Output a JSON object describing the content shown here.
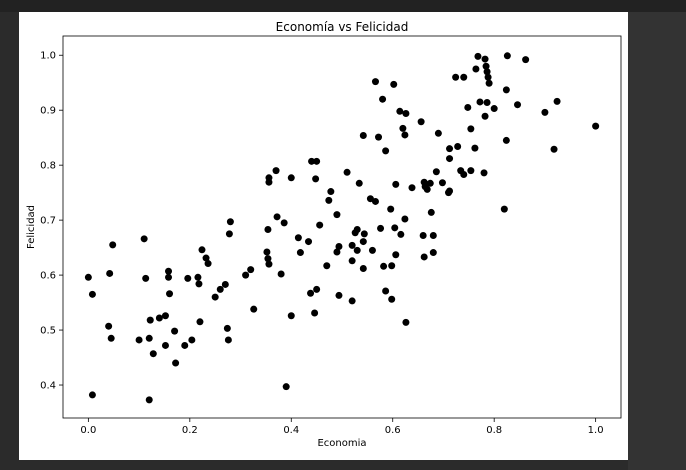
{
  "chart_data": {
    "type": "scatter",
    "title": "Economía vs Felicidad",
    "xlabel": "Economia",
    "ylabel": "Felicidad",
    "xlim": [
      -0.05,
      1.05
    ],
    "ylim": [
      0.34,
      1.035
    ],
    "xticks": [
      0.0,
      0.2,
      0.4,
      0.6,
      0.8,
      1.0
    ],
    "yticks": [
      0.4,
      0.5,
      0.6,
      0.7,
      0.8,
      0.9,
      1.0
    ],
    "grid": false,
    "marker_color": "#000000",
    "points": [
      [
        0.0,
        0.596
      ],
      [
        0.008,
        0.565
      ],
      [
        0.008,
        0.382
      ],
      [
        0.04,
        0.507
      ],
      [
        0.042,
        0.603
      ],
      [
        0.048,
        0.655
      ],
      [
        0.045,
        0.485
      ],
      [
        0.1,
        0.482
      ],
      [
        0.11,
        0.666
      ],
      [
        0.113,
        0.594
      ],
      [
        0.12,
        0.373
      ],
      [
        0.12,
        0.485
      ],
      [
        0.122,
        0.518
      ],
      [
        0.128,
        0.457
      ],
      [
        0.14,
        0.522
      ],
      [
        0.152,
        0.472
      ],
      [
        0.152,
        0.526
      ],
      [
        0.158,
        0.607
      ],
      [
        0.16,
        0.566
      ],
      [
        0.158,
        0.596
      ],
      [
        0.17,
        0.498
      ],
      [
        0.172,
        0.44
      ],
      [
        0.19,
        0.472
      ],
      [
        0.196,
        0.594
      ],
      [
        0.204,
        0.482
      ],
      [
        0.216,
        0.596
      ],
      [
        0.218,
        0.584
      ],
      [
        0.22,
        0.515
      ],
      [
        0.224,
        0.646
      ],
      [
        0.232,
        0.631
      ],
      [
        0.236,
        0.621
      ],
      [
        0.25,
        0.56
      ],
      [
        0.26,
        0.574
      ],
      [
        0.27,
        0.583
      ],
      [
        0.274,
        0.503
      ],
      [
        0.276,
        0.482
      ],
      [
        0.278,
        0.675
      ],
      [
        0.28,
        0.697
      ],
      [
        0.31,
        0.6
      ],
      [
        0.32,
        0.61
      ],
      [
        0.326,
        0.538
      ],
      [
        0.352,
        0.642
      ],
      [
        0.354,
        0.683
      ],
      [
        0.354,
        0.63
      ],
      [
        0.356,
        0.62
      ],
      [
        0.356,
        0.769
      ],
      [
        0.356,
        0.777
      ],
      [
        0.37,
        0.79
      ],
      [
        0.372,
        0.706
      ],
      [
        0.38,
        0.602
      ],
      [
        0.386,
        0.695
      ],
      [
        0.39,
        0.397
      ],
      [
        0.4,
        0.526
      ],
      [
        0.4,
        0.777
      ],
      [
        0.414,
        0.668
      ],
      [
        0.418,
        0.641
      ],
      [
        0.434,
        0.661
      ],
      [
        0.438,
        0.567
      ],
      [
        0.44,
        0.807
      ],
      [
        0.446,
        0.531
      ],
      [
        0.448,
        0.775
      ],
      [
        0.45,
        0.574
      ],
      [
        0.45,
        0.807
      ],
      [
        0.456,
        0.691
      ],
      [
        0.47,
        0.617
      ],
      [
        0.474,
        0.736
      ],
      [
        0.478,
        0.752
      ],
      [
        0.49,
        0.71
      ],
      [
        0.49,
        0.642
      ],
      [
        0.494,
        0.652
      ],
      [
        0.494,
        0.563
      ],
      [
        0.51,
        0.787
      ],
      [
        0.52,
        0.553
      ],
      [
        0.52,
        0.626
      ],
      [
        0.52,
        0.654
      ],
      [
        0.526,
        0.677
      ],
      [
        0.53,
        0.683
      ],
      [
        0.53,
        0.645
      ],
      [
        0.534,
        0.767
      ],
      [
        0.542,
        0.854
      ],
      [
        0.542,
        0.612
      ],
      [
        0.542,
        0.661
      ],
      [
        0.544,
        0.675
      ],
      [
        0.556,
        0.739
      ],
      [
        0.56,
        0.645
      ],
      [
        0.566,
        0.952
      ],
      [
        0.566,
        0.734
      ],
      [
        0.572,
        0.851
      ],
      [
        0.576,
        0.685
      ],
      [
        0.58,
        0.92
      ],
      [
        0.582,
        0.616
      ],
      [
        0.586,
        0.826
      ],
      [
        0.586,
        0.571
      ],
      [
        0.596,
        0.72
      ],
      [
        0.598,
        0.617
      ],
      [
        0.598,
        0.556
      ],
      [
        0.602,
        0.947
      ],
      [
        0.604,
        0.686
      ],
      [
        0.606,
        0.765
      ],
      [
        0.606,
        0.637
      ],
      [
        0.614,
        0.898
      ],
      [
        0.616,
        0.674
      ],
      [
        0.62,
        0.867
      ],
      [
        0.624,
        0.702
      ],
      [
        0.624,
        0.855
      ],
      [
        0.626,
        0.894
      ],
      [
        0.626,
        0.514
      ],
      [
        0.638,
        0.759
      ],
      [
        0.656,
        0.879
      ],
      [
        0.66,
        0.672
      ],
      [
        0.662,
        0.769
      ],
      [
        0.662,
        0.633
      ],
      [
        0.664,
        0.761
      ],
      [
        0.668,
        0.756
      ],
      [
        0.674,
        0.767
      ],
      [
        0.676,
        0.714
      ],
      [
        0.68,
        0.641
      ],
      [
        0.68,
        0.672
      ],
      [
        0.686,
        0.788
      ],
      [
        0.69,
        0.858
      ],
      [
        0.698,
        0.768
      ],
      [
        0.71,
        0.75
      ],
      [
        0.712,
        0.753
      ],
      [
        0.712,
        0.812
      ],
      [
        0.712,
        0.83
      ],
      [
        0.724,
        0.96
      ],
      [
        0.728,
        0.834
      ],
      [
        0.734,
        0.79
      ],
      [
        0.74,
        0.96
      ],
      [
        0.74,
        0.783
      ],
      [
        0.748,
        0.905
      ],
      [
        0.754,
        0.79
      ],
      [
        0.754,
        0.866
      ],
      [
        0.762,
        0.831
      ],
      [
        0.764,
        0.975
      ],
      [
        0.768,
        0.998
      ],
      [
        0.772,
        0.915
      ],
      [
        0.78,
        0.786
      ],
      [
        0.782,
        0.993
      ],
      [
        0.782,
        0.889
      ],
      [
        0.784,
        0.98
      ],
      [
        0.786,
        0.97
      ],
      [
        0.786,
        0.914
      ],
      [
        0.788,
        0.96
      ],
      [
        0.79,
        0.949
      ],
      [
        0.8,
        0.903
      ],
      [
        0.82,
        0.72
      ],
      [
        0.824,
        0.937
      ],
      [
        0.824,
        0.845
      ],
      [
        0.826,
        0.999
      ],
      [
        0.846,
        0.91
      ],
      [
        0.862,
        0.992
      ],
      [
        0.9,
        0.896
      ],
      [
        0.918,
        0.829
      ],
      [
        0.924,
        0.916
      ],
      [
        1.0,
        0.871
      ]
    ]
  }
}
